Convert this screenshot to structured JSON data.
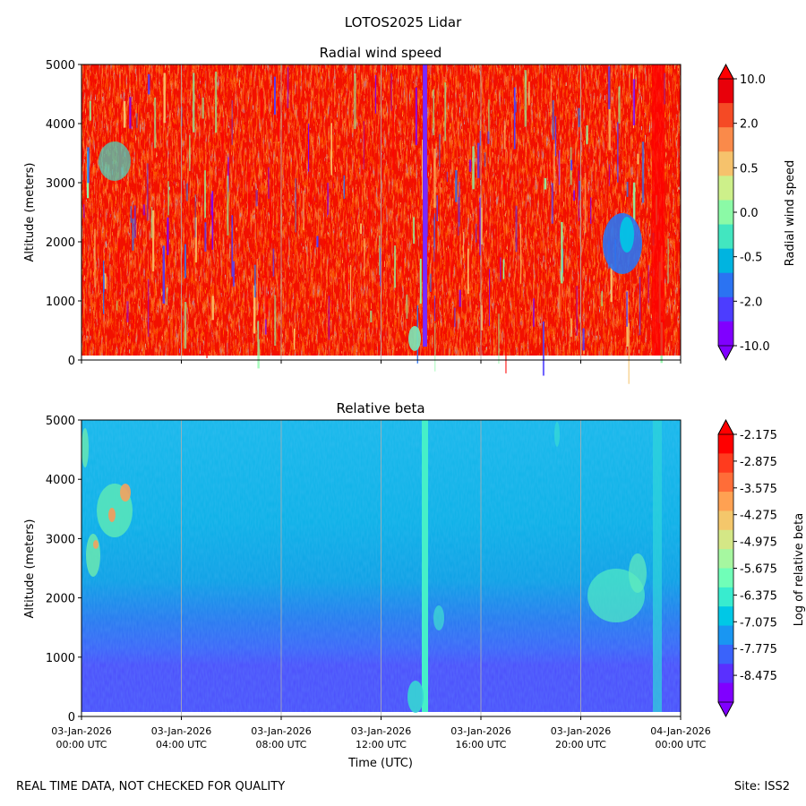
{
  "figure": {
    "suptitle": "LOTOS2025 Lidar",
    "footer_left": "REAL TIME DATA, NOT CHECKED FOR QUALITY",
    "footer_right": "Site: ISS2"
  },
  "chart_data": [
    {
      "type": "heatmap",
      "title": "Radial wind speed",
      "ylabel": "Altitude (meters)",
      "ylim": [
        0,
        5000
      ],
      "yticks": [
        "0",
        "1000",
        "2000",
        "3000",
        "4000",
        "5000"
      ],
      "xlim_hours": [
        0,
        24
      ],
      "colorbar": {
        "label": "Radial wind speed",
        "extend": "both",
        "ticks": [
          "10.0",
          "2.0",
          "0.5",
          "0.0",
          "-0.5",
          "-2.0",
          "-10.0"
        ],
        "colors": [
          "#e8000a",
          "#f54a25",
          "#fa8a4a",
          "#f6c26c",
          "#cdf08a",
          "#8bfaa6",
          "#42e6c0",
          "#00b4e0",
          "#2b73f2",
          "#4c3dff",
          "#8000ff"
        ],
        "over_color": "#ff0000",
        "under_color": "#8000ff"
      }
    },
    {
      "type": "heatmap",
      "title": "Relative beta",
      "ylabel": "Altitude (meters)",
      "xlabel": "Time (UTC)",
      "ylim": [
        0,
        5000
      ],
      "yticks": [
        "0",
        "1000",
        "2000",
        "3000",
        "4000",
        "5000"
      ],
      "xlim_hours": [
        0,
        24
      ],
      "xticks": [
        {
          "date": "03-Jan-2026",
          "time": "00:00 UTC"
        },
        {
          "date": "03-Jan-2026",
          "time": "04:00 UTC"
        },
        {
          "date": "03-Jan-2026",
          "time": "08:00 UTC"
        },
        {
          "date": "03-Jan-2026",
          "time": "12:00 UTC"
        },
        {
          "date": "03-Jan-2026",
          "time": "16:00 UTC"
        },
        {
          "date": "03-Jan-2026",
          "time": "20:00 UTC"
        },
        {
          "date": "04-Jan-2026",
          "time": "00:00 UTC"
        }
      ],
      "colorbar": {
        "label": "Log of relative beta",
        "extend": "both",
        "ticks": [
          "-2.175",
          "-2.875",
          "-3.575",
          "-4.275",
          "-4.975",
          "-5.675",
          "-6.375",
          "-7.075",
          "-7.775",
          "-8.475"
        ],
        "colors": [
          "#ff0000",
          "#ff3b1e",
          "#ff6d38",
          "#ffa152",
          "#f4c76b",
          "#d4e786",
          "#a6f7a0",
          "#70feb8",
          "#38eccf",
          "#00c8e6",
          "#1996f2",
          "#3a63fb",
          "#5a30fe",
          "#8000ff"
        ],
        "over_color": "#ff0000",
        "under_color": "#8000ff"
      }
    }
  ]
}
